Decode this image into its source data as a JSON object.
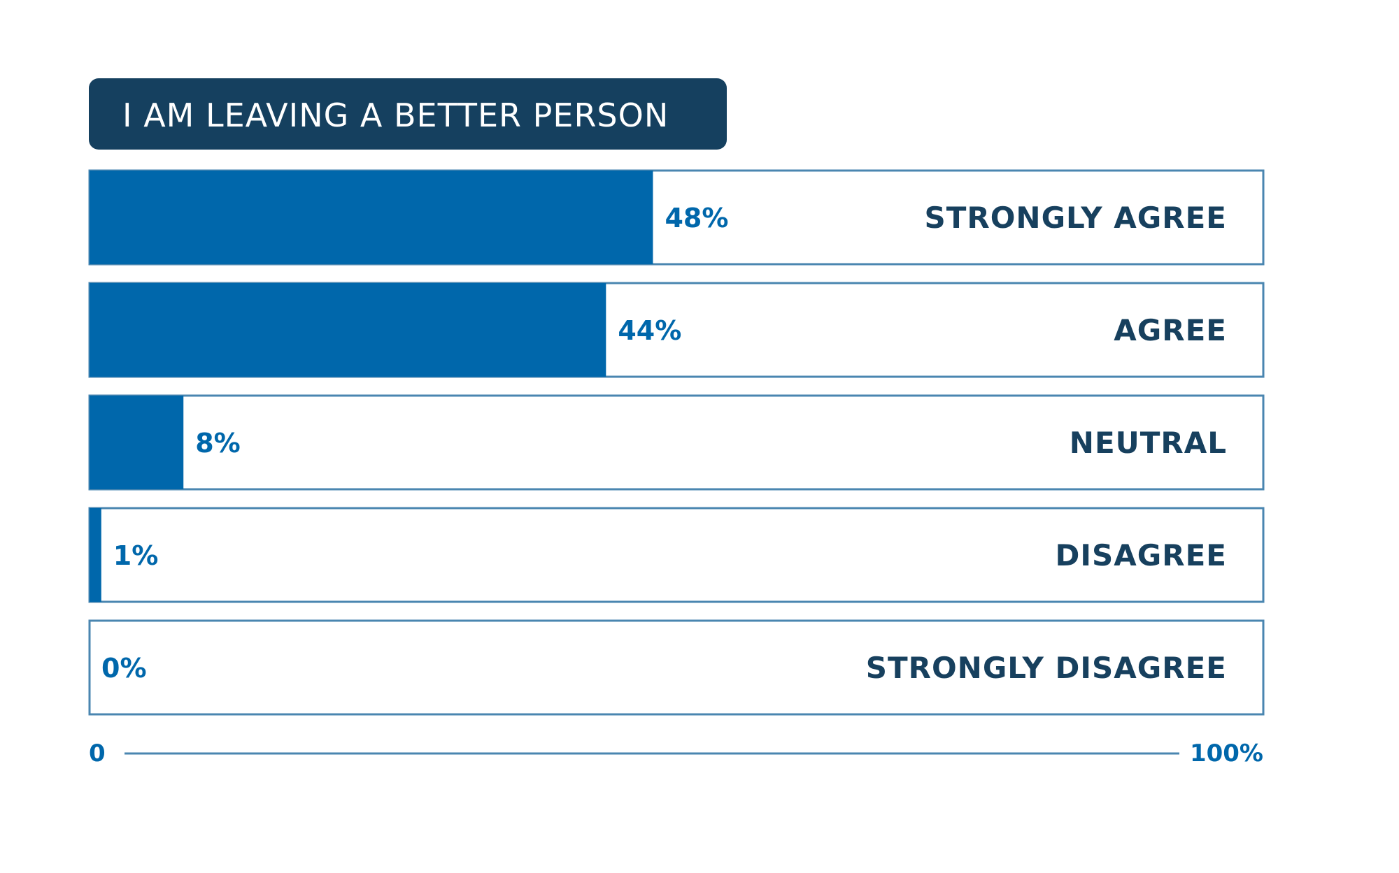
{
  "colors": {
    "title_bg": "#15405f",
    "bar_fill": "#0067ab",
    "bar_border": "#4a86b0",
    "value_text": "#0067ab",
    "category_text": "#17405e",
    "axis_line": "#4a86b0"
  },
  "chart_data": {
    "type": "bar",
    "orientation": "horizontal",
    "title": "I AM LEAVING A BETTER PERSON",
    "categories": [
      "STRONGLY AGREE",
      "AGREE",
      "NEUTRAL",
      "DISAGREE",
      "STRONGLY DISAGREE"
    ],
    "values": [
      48,
      44,
      8,
      1,
      0
    ],
    "value_labels": [
      "48%",
      "44%",
      "8%",
      "1%",
      "0%"
    ],
    "xlim": [
      0,
      100
    ],
    "axis_labels": {
      "min": "0",
      "max": "100%"
    },
    "grid": false,
    "legend": "none"
  }
}
